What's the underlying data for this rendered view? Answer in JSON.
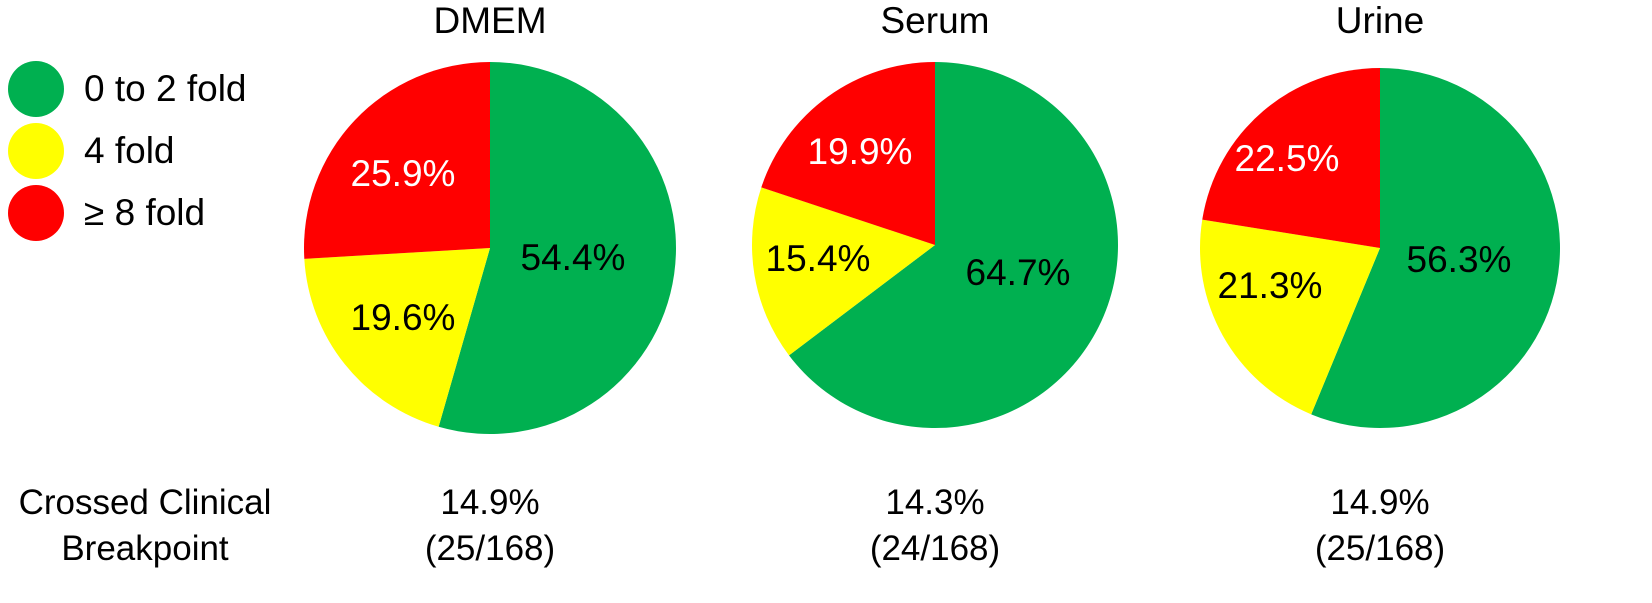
{
  "legend": [
    {
      "label": "0 to 2 fold",
      "color": "#00b050"
    },
    {
      "label": "4 fold",
      "color": "#ffff00"
    },
    {
      "label": "≥ 8 fold",
      "color": "#ff0000"
    }
  ],
  "row_label": {
    "line1": "Crossed Clinical",
    "line2": "Breakpoint"
  },
  "chart_data": [
    {
      "type": "pie",
      "title": "DMEM",
      "slices": [
        {
          "category": "0 to 2 fold",
          "value": 54.4,
          "label": "54.4%"
        },
        {
          "category": "4 fold",
          "value": 19.6,
          "label": "19.6%"
        },
        {
          "category": "≥ 8 fold",
          "value": 25.9,
          "label": "25.9%"
        }
      ],
      "breakpoint": {
        "percent": "14.9%",
        "fraction": "(25/168)"
      }
    },
    {
      "type": "pie",
      "title": "Serum",
      "slices": [
        {
          "category": "0 to 2 fold",
          "value": 64.7,
          "label": "64.7%"
        },
        {
          "category": "4 fold",
          "value": 15.4,
          "label": "15.4%"
        },
        {
          "category": "≥ 8 fold",
          "value": 19.9,
          "label": "19.9%"
        }
      ],
      "breakpoint": {
        "percent": "14.3%",
        "fraction": "(24/168)"
      }
    },
    {
      "type": "pie",
      "title": "Urine",
      "slices": [
        {
          "category": "0 to 2 fold",
          "value": 56.3,
          "label": "56.3%"
        },
        {
          "category": "4 fold",
          "value": 21.3,
          "label": "21.3%"
        },
        {
          "category": "≥ 8 fold",
          "value": 22.5,
          "label": "22.5%"
        }
      ],
      "breakpoint": {
        "percent": "14.9%",
        "fraction": "(25/168)"
      }
    }
  ]
}
